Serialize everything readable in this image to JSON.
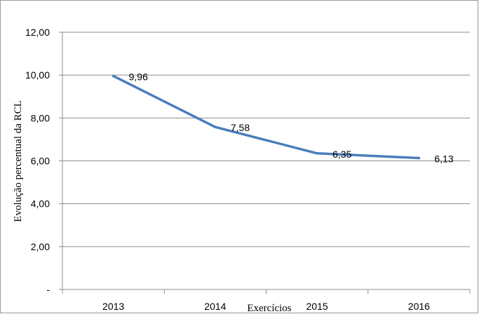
{
  "chart_data": {
    "type": "line",
    "categories": [
      "2013",
      "2014",
      "2015",
      "2016"
    ],
    "series": [
      {
        "values": [
          9.96,
          7.58,
          6.35,
          6.13
        ],
        "color": "#4a7ebb"
      }
    ],
    "data_labels": [
      "9,96",
      "7,58",
      "6,35",
      "6,13"
    ],
    "xlabel": "Exercícios",
    "ylabel": "Evolução percentual  da RCL",
    "ylim": [
      0,
      12
    ],
    "yticks": [
      0,
      2,
      4,
      6,
      8,
      10,
      12
    ],
    "ytick_labels": [
      "-",
      "2,00",
      "4,00",
      "6,00",
      "8,00",
      "10,00",
      "12,00"
    ],
    "grid": "horizontal",
    "legend": "none"
  }
}
